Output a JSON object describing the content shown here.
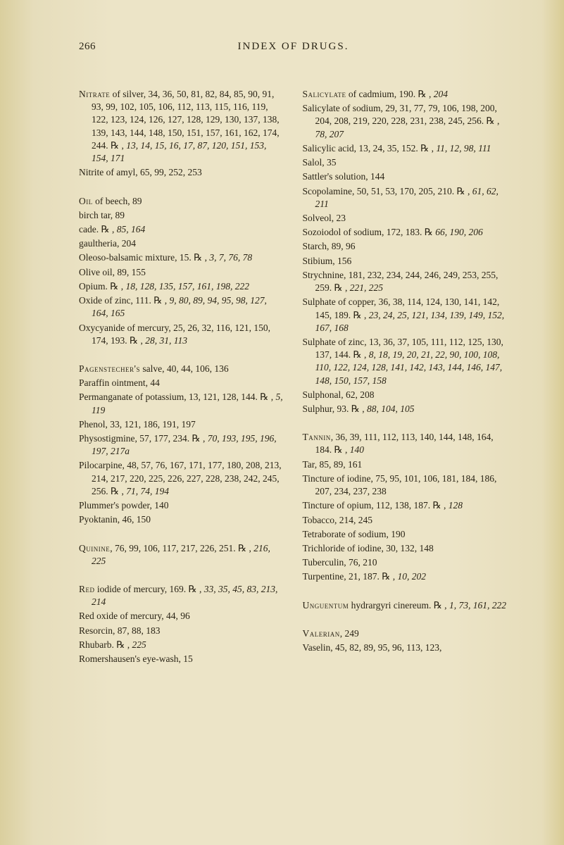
{
  "header": {
    "pageno": "266",
    "title": "INDEX OF DRUGS."
  },
  "left": [
    [
      "<span class='sc'>Nitrate</span> of silver, 34, 36, 50, 81, 82, 84, 85, 90, 91, 93, 99, 102, 105, 106, 112, 113, 115, 116, 119, 122, 123, 124, 126, 127, 128, 129, 130, 137, 138, 139, 143, 144, 148, 150, 151, 157, 161, 162, 174, 244. ℞ , <span class='it'>13, 14, 15, 16, 17, 87, 120, 151, 153, 154, 171</span>",
      "Nitrite of amyl, 65, 99, 252, 253"
    ],
    [
      "<span class='sc'>Oil</span> of beech, 89",
      "birch tar, 89",
      "cade. ℞ , <span class='it'>85, 164</span>",
      "gaultheria, 204",
      "Oleoso-balsamic mixture, 15. ℞ , <span class='it'>3, 7, 76, 78</span>",
      "Olive oil, 89, 155",
      "Opium. ℞ , <span class='it'>18, 128, 135, 157, 161, 198, 222</span>",
      "Oxide of zinc, 111. ℞ , <span class='it'>9, 80, 89, 94, 95, 98, 127, 164, 165</span>",
      "Oxycyanide of mercury, 25, 26, 32, 116, 121, 150, 174, 193. ℞ , <span class='it'>28, 31, 113</span>"
    ],
    [
      "<span class='sc'>Pagenstecher's</span> salve, 40, 44, 106, 136",
      "Paraffin ointment, 44",
      "Permanganate of potassium, 13, 121, 128, 144. ℞ , <span class='it'>5, 119</span>",
      "Phenol, 33, 121, 186, 191, 197",
      "Physostigmine, 57, 177, 234. ℞ , <span class='it'>70, 193, 195, 196, 197, 217a</span>",
      "Pilocarpine, 48, 57, 76, 167, 171, 177, 180, 208, 213, 214, 217, 220, 225, 226, 227, 228, 238, 242, 245, 256. ℞ , <span class='it'>71, 74, 194</span>",
      "Plummer's powder, 140",
      "Pyoktanin, 46, 150"
    ],
    [
      "<span class='sc'>Quinine</span>, 76, 99, 106, 117, 217, 226, 251. ℞ , <span class='it'>216, 225</span>"
    ],
    [
      "<span class='sc'>Red</span> iodide of mercury, 169. ℞ , <span class='it'>33, 35, 45, 83, 213, 214</span>",
      "Red oxide of mercury, 44, 96",
      "Resorcin, 87, 88, 183",
      "Rhubarb. ℞ , <span class='it'>225</span>",
      "Romershausen's eye-wash, 15"
    ]
  ],
  "right": [
    [
      "<span class='sc'>Salicylate</span> of cadmium, 190. ℞ , <span class='it'>204</span>",
      "Salicylate of sodium, 29, 31, 77, 79, 106, 198, 200, 204, 208, 219, 220, 228, 231, 238, 245, 256. ℞ , <span class='it'>78, 207</span>",
      "Salicylic acid, 13, 24, 35, 152. ℞ , <span class='it'>11, 12, 98, 111</span>",
      "Salol, 35",
      "Sattler's solution, 144",
      "Scopolamine, 50, 51, 53, 170, 205, 210. ℞ , <span class='it'>61, 62, 211</span>",
      "Solveol, 23",
      "Sozoiodol of sodium, 172, 183. ℞ <span class='it'>66, 190, 206</span>",
      "Starch, 89, 96",
      "Stibium, 156",
      "Strychnine, 181, 232, 234, 244, 246, 249, 253, 255, 259. ℞ , <span class='it'>221, 225</span>",
      "Sulphate of copper, 36, 38, 114, 124, 130, 141, 142, 145, 189. ℞ , <span class='it'>23, 24, 25, 121, 134, 139, 149, 152, 167, 168</span>",
      "Sulphate of zinc, 13, 36, 37, 105, 111, 112, 125, 130, 137, 144. ℞ , <span class='it'>8, 18, 19, 20, 21, 22, 90, 100, 108, 110, 122, 124, 128, 141, 142, 143, 144, 146, 147, 148, 150, 157, 158</span>",
      "Sulphonal, 62, 208",
      "Sulphur, 93. ℞ , <span class='it'>88, 104, 105</span>"
    ],
    [
      "<span class='sc'>Tannin</span>, 36, 39, 111, 112, 113, 140, 144, 148, 164, 184. ℞ , <span class='it'>140</span>",
      "Tar, 85, 89, 161",
      "Tincture of iodine, 75, 95, 101, 106, 181, 184, 186, 207, 234, 237, 238",
      "Tincture of opium, 112, 138, 187. ℞ , <span class='it'>128</span>",
      "Tobacco, 214, 245",
      "Tetraborate of sodium, 190",
      "Trichloride of iodine, 30, 132, 148",
      "Tuberculin, 76, 210",
      "Turpentine, 21, 187. ℞ , <span class='it'>10, 202</span>"
    ],
    [
      "<span class='sc'>Unguentum</span> hydrargyri cinereum. ℞ , <span class='it'>1, 73, 161, 222</span>"
    ],
    [
      "<span class='sc'>Valerian</span>, 249",
      "Vaselin, 45, 82, 89, 95, 96, 113, 123,"
    ]
  ]
}
